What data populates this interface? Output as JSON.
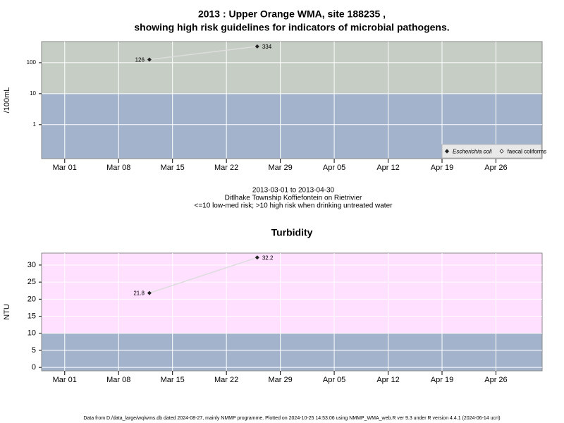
{
  "chart_data": [
    {
      "type": "line",
      "title": "2013 : Upper Orange WMA, site 188235 ,",
      "subtitle": "showing high risk guidelines for indicators of microbial pathogens.",
      "y_label": "/100mL",
      "y_scale": "log",
      "x": [
        "2013-03-12",
        "2013-03-26"
      ],
      "series": [
        {
          "name": "Escherichia coli",
          "color": "#222222",
          "values": [
            126,
            334
          ]
        },
        {
          "name": "faecal coliforms",
          "color": "#222222",
          "values": [
            null,
            null
          ]
        }
      ],
      "line_color": "#dddddd",
      "xlim": [
        "2013-02-26",
        "2013-05-02"
      ],
      "xticks": [
        {
          "value": "2013-03-01",
          "label": "Mar 01"
        },
        {
          "value": "2013-03-08",
          "label": "Mar 08"
        },
        {
          "value": "2013-03-15",
          "label": "Mar 15"
        },
        {
          "value": "2013-03-22",
          "label": "Mar 22"
        },
        {
          "value": "2013-03-29",
          "label": "Mar 29"
        },
        {
          "value": "2013-04-05",
          "label": "Apr 05"
        },
        {
          "value": "2013-04-12",
          "label": "Apr 12"
        },
        {
          "value": "2013-04-19",
          "label": "Apr 19"
        },
        {
          "value": "2013-04-26",
          "label": "Apr 26"
        }
      ],
      "ylim": [
        0.08,
        480
      ],
      "yticks": [
        1,
        10,
        100
      ],
      "bands": [
        {
          "to": 10,
          "color": "#a3b3cb"
        },
        {
          "from": 10,
          "color": "#c5cdc4"
        }
      ],
      "grid": true,
      "legend": "lower right"
    },
    {
      "type": "line",
      "title": "Turbidity",
      "y_label": "NTU",
      "x": [
        "2013-03-12",
        "2013-03-26"
      ],
      "values": [
        21.8,
        32.2
      ],
      "color": "#222222",
      "line_color": "#dddddd",
      "xlim": [
        "2013-02-26",
        "2013-05-02"
      ],
      "xticks": [
        {
          "value": "2013-03-01",
          "label": "Mar 01"
        },
        {
          "value": "2013-03-08",
          "label": "Mar 08"
        },
        {
          "value": "2013-03-15",
          "label": "Mar 15"
        },
        {
          "value": "2013-03-22",
          "label": "Mar 22"
        },
        {
          "value": "2013-03-29",
          "label": "Mar 29"
        },
        {
          "value": "2013-04-05",
          "label": "Apr 05"
        },
        {
          "value": "2013-04-12",
          "label": "Apr 12"
        },
        {
          "value": "2013-04-19",
          "label": "Apr 19"
        },
        {
          "value": "2013-04-26",
          "label": "Apr 26"
        }
      ],
      "ylim": [
        -1,
        33.5
      ],
      "yticks": [
        0,
        5,
        10,
        15,
        20,
        25,
        30
      ],
      "bands": [
        {
          "to": 10,
          "color": "#a3b3cb"
        },
        {
          "from": 10,
          "color": "#ffe0ff"
        }
      ],
      "grid": true
    }
  ],
  "caption": [
    "2013-03-01 to 2013-04-30",
    "Ditlhake Township Koffiefontein on Rietrivier",
    "<=10 low-med risk; >10 high risk when drinking untreated water"
  ],
  "footer": "Data from D:/data_large/wq/wms.db dated 2024-08-27, mainly NMMP programme. Plotted on 2024-10-25 14:53:06 using NMMP_WMA_web.R ver 9.3 under R version 4.4.1 (2024-06-14 ucrt)"
}
